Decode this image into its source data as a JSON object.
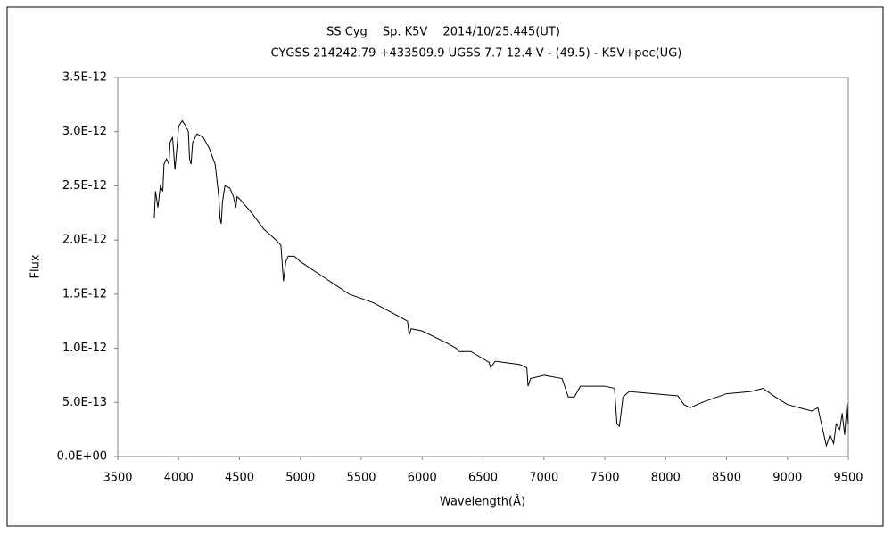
{
  "chart_data": {
    "type": "line",
    "title": "SS Cyg　 Sp. K5V　 2014/10/25.445(UT)",
    "subtitle": "CYGSS 214242.79 +433509.9 UGSS 7.7 12.4 V - (49.5) - K5V+pec(UG)",
    "x_label": "Wavelength(Å)",
    "y_label": "Flux",
    "xlim": [
      3500,
      9500
    ],
    "xticks": [
      3500,
      4000,
      4500,
      5000,
      5500,
      6000,
      6500,
      7000,
      7500,
      8000,
      8500,
      9000,
      9500
    ],
    "ylim": [
      0,
      3.5e-12
    ],
    "yticks": [
      {
        "value": 0,
        "label": "0.0E+00"
      },
      {
        "value": 5e-13,
        "label": "5.0E-13"
      },
      {
        "value": 1e-12,
        "label": "1.0E-12"
      },
      {
        "value": 1.5e-12,
        "label": "1.5E-12"
      },
      {
        "value": 2e-12,
        "label": "2.0E-12"
      },
      {
        "value": 2.5e-12,
        "label": "2.5E-12"
      },
      {
        "value": 3e-12,
        "label": "3.0E-12"
      },
      {
        "value": 3.5e-12,
        "label": "3.5E-12"
      }
    ],
    "grid": false,
    "color": "#000000",
    "x": [
      3800,
      3810,
      3830,
      3850,
      3870,
      3880,
      3900,
      3920,
      3930,
      3950,
      3960,
      3970,
      3990,
      4000,
      4030,
      4060,
      4080,
      4090,
      4102,
      4115,
      4150,
      4200,
      4250,
      4300,
      4330,
      4340,
      4350,
      4360,
      4380,
      4420,
      4450,
      4470,
      4480,
      4500,
      4600,
      4700,
      4800,
      4840,
      4861,
      4880,
      4900,
      4950,
      5000,
      5200,
      5400,
      5600,
      5800,
      5880,
      5893,
      5910,
      6000,
      6200,
      6280,
      6300,
      6400,
      6550,
      6563,
      6600,
      6800,
      6860,
      6870,
      6890,
      7000,
      7150,
      7200,
      7250,
      7300,
      7500,
      7580,
      7600,
      7620,
      7650,
      7700,
      8000,
      8100,
      8150,
      8200,
      8300,
      8500,
      8700,
      8800,
      8900,
      9000,
      9100,
      9200,
      9250,
      9280,
      9300,
      9320,
      9350,
      9380,
      9400,
      9430,
      9450,
      9470,
      9490,
      9500
    ],
    "values": [
      2.2e-12,
      2.45e-12,
      2.3e-12,
      2.5e-12,
      2.45e-12,
      2.7e-12,
      2.75e-12,
      2.7e-12,
      2.9e-12,
      2.95e-12,
      2.8e-12,
      2.65e-12,
      2.9e-12,
      3.05e-12,
      3.1e-12,
      3.05e-12,
      3e-12,
      2.75e-12,
      2.7e-12,
      2.9e-12,
      2.98e-12,
      2.95e-12,
      2.85e-12,
      2.7e-12,
      2.4e-12,
      2.2e-12,
      2.15e-12,
      2.35e-12,
      2.5e-12,
      2.48e-12,
      2.4e-12,
      2.3e-12,
      2.4e-12,
      2.38e-12,
      2.25e-12,
      2.1e-12,
      2e-12,
      1.95e-12,
      1.62e-12,
      1.8e-12,
      1.85e-12,
      1.85e-12,
      1.8e-12,
      1.65e-12,
      1.5e-12,
      1.42e-12,
      1.3e-12,
      1.25e-12,
      1.12e-12,
      1.18e-12,
      1.16e-12,
      1.05e-12,
      1e-12,
      9.7e-13,
      9.7e-13,
      8.7e-13,
      8.2e-13,
      8.8e-13,
      8.5e-13,
      8.2e-13,
      6.5e-13,
      7.2e-13,
      7.5e-13,
      7.2e-13,
      5.5e-13,
      5.5e-13,
      6.5e-13,
      6.5e-13,
      6.3e-13,
      3e-13,
      2.8e-13,
      5.5e-13,
      6e-13,
      5.7e-13,
      5.6e-13,
      4.8e-13,
      4.5e-13,
      5e-13,
      5.8e-13,
      6e-13,
      6.3e-13,
      5.5e-13,
      4.8e-13,
      4.5e-13,
      4.2e-13,
      4.5e-13,
      3e-13,
      2e-13,
      1e-13,
      2e-13,
      1.2e-13,
      3e-13,
      2.5e-13,
      4e-13,
      2e-13,
      5e-13,
      3e-13
    ]
  }
}
